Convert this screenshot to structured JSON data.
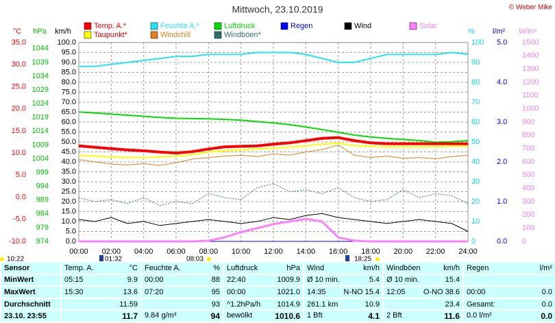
{
  "chart_data": {
    "type": "line",
    "title": "Mittwoch, 23.10.2019",
    "copyright": "© Weber Mike",
    "grid": true,
    "xlim": [
      0,
      24
    ],
    "xticks": [
      {
        "value": 0,
        "label": "00:00"
      },
      {
        "value": 2,
        "label": "02:00"
      },
      {
        "value": 4,
        "label": "04:00"
      },
      {
        "value": 6,
        "label": "06:00"
      },
      {
        "value": 8,
        "label": "08:00"
      },
      {
        "value": 10,
        "label": "10:00"
      },
      {
        "value": 12,
        "label": "12:00"
      },
      {
        "value": 14,
        "label": "14:00"
      },
      {
        "value": 16,
        "label": "16:00"
      },
      {
        "value": 18,
        "label": "18:00"
      },
      {
        "value": 20,
        "label": "20:00"
      },
      {
        "value": 22,
        "label": "22:00"
      },
      {
        "value": 24,
        "label": "24:00"
      }
    ],
    "x": [
      0,
      1,
      2,
      3,
      4,
      5,
      6,
      7,
      8,
      9,
      10,
      11,
      12,
      13,
      14,
      15,
      16,
      17,
      18,
      19,
      20,
      21,
      22,
      23,
      24
    ],
    "axes": {
      "temp": {
        "label": "°C",
        "color": "#ff0000",
        "side": "left",
        "lim": [
          -10,
          35
        ],
        "ticks": [
          {
            "value": 35,
            "label": "35.0"
          },
          {
            "value": 30,
            "label": "30.0"
          },
          {
            "value": 25,
            "label": "25.0"
          },
          {
            "value": 20,
            "label": "20.0"
          },
          {
            "value": 15,
            "label": "15.0"
          },
          {
            "value": 10,
            "label": "10.0"
          },
          {
            "value": 5,
            "label": "5.0"
          },
          {
            "value": 0,
            "label": "0.0"
          },
          {
            "value": -5,
            "label": "-5.0"
          },
          {
            "value": -10,
            "label": "-10.0"
          }
        ]
      },
      "press": {
        "label": "hPa",
        "color": "#00c000",
        "side": "left",
        "lim": [
          974,
          1046.2
        ],
        "ticks": [
          1044,
          1039,
          1034,
          1029,
          1024,
          1019,
          1014,
          1009,
          1004,
          999,
          994,
          989,
          984,
          979,
          974
        ]
      },
      "wind": {
        "label": "km/h",
        "color": "#000000",
        "side": "left",
        "lim": [
          0,
          100
        ],
        "ticks": [
          {
            "value": 100,
            "label": "100.0"
          },
          {
            "value": 95,
            "label": "95.0"
          },
          {
            "value": 90,
            "label": "90.0"
          },
          {
            "value": 85,
            "label": "85.0"
          },
          {
            "value": 80,
            "label": "80.0"
          },
          {
            "value": 75,
            "label": "75.0"
          },
          {
            "value": 70,
            "label": "70.0"
          },
          {
            "value": 65,
            "label": "65.0"
          },
          {
            "value": 60,
            "label": "60.0"
          },
          {
            "value": 55,
            "label": "55.0"
          },
          {
            "value": 50,
            "label": "50.0"
          },
          {
            "value": 45,
            "label": "45.0"
          },
          {
            "value": 40,
            "label": "40.0"
          },
          {
            "value": 35,
            "label": "35.0"
          },
          {
            "value": 30,
            "label": "30.0"
          },
          {
            "value": 25,
            "label": "25.0"
          },
          {
            "value": 20,
            "label": "20.0"
          },
          {
            "value": 15,
            "label": "15.0"
          },
          {
            "value": 10,
            "label": "10.0"
          },
          {
            "value": 5,
            "label": "5.0"
          },
          {
            "value": 0,
            "label": "0.0"
          }
        ]
      },
      "hum": {
        "label": "%",
        "color": "#00d8e8",
        "side": "right",
        "lim": [
          0,
          100
        ],
        "ticks": [
          100,
          90,
          80,
          70,
          60,
          50,
          40,
          30,
          20,
          10,
          0
        ]
      },
      "rain": {
        "label": "l/m²",
        "color": "#0000ff",
        "side": "right",
        "lim": [
          0,
          5
        ],
        "ticks": [
          {
            "value": 5,
            "label": "5.0"
          },
          {
            "value": 4,
            "label": "4.0"
          },
          {
            "value": 3,
            "label": "3.0"
          },
          {
            "value": 2,
            "label": "2.0"
          },
          {
            "value": 1,
            "label": "1.0"
          },
          {
            "value": 0,
            "label": "0.0"
          }
        ]
      },
      "solar": {
        "label": "W/m²",
        "color": "#ee82ee",
        "side": "right",
        "lim": [
          0,
          1500
        ],
        "ticks": [
          1500,
          1400,
          1300,
          1200,
          1100,
          1000,
          900,
          800,
          700,
          600,
          500,
          400,
          300,
          200,
          100,
          0
        ]
      }
    },
    "series": [
      {
        "name": "Temp. A.*",
        "color": "#ff0000",
        "axis": "temp",
        "width": 4,
        "values": [
          11.6,
          11.3,
          11.0,
          10.7,
          10.5,
          10.2,
          10.0,
          10.3,
          10.9,
          11.4,
          11.5,
          11.6,
          12.0,
          12.3,
          12.8,
          13.3,
          13.5,
          12.8,
          12.3,
          12.1,
          12.1,
          12.1,
          12.1,
          12.1,
          12.1
        ]
      },
      {
        "name": "Feuchte A.*",
        "color": "#22e4f2",
        "axis": "hum",
        "width": 2,
        "values": [
          88,
          88,
          89,
          90,
          91,
          92,
          93,
          93,
          94,
          94,
          94,
          95,
          95,
          95,
          94,
          92,
          90,
          90,
          92,
          94,
          94,
          94,
          94,
          95,
          94
        ]
      },
      {
        "name": "Luftdruck",
        "color": "#00dd00",
        "axis": "press",
        "width": 2,
        "values": [
          1021.0,
          1020.6,
          1020.2,
          1019.8,
          1019.4,
          1019.0,
          1018.7,
          1018.6,
          1018.5,
          1018.3,
          1018.0,
          1017.5,
          1017.0,
          1016.4,
          1015.5,
          1014.6,
          1013.6,
          1012.6,
          1011.9,
          1011.4,
          1011.0,
          1010.6,
          1010.0,
          1010.2,
          1010.6
        ]
      },
      {
        "name": "Regen",
        "color": "#0000ff",
        "axis": "rain",
        "width": 1,
        "values": [
          0,
          0,
          0,
          0,
          0,
          0,
          0,
          0,
          0,
          0,
          0,
          0,
          0,
          0,
          0,
          0,
          0,
          0,
          0,
          0,
          0,
          0,
          0,
          0,
          0
        ]
      },
      {
        "name": "Wind",
        "color": "#000000",
        "axis": "wind",
        "width": 1,
        "values": [
          11,
          10,
          12,
          9,
          10,
          8,
          9,
          10,
          11,
          10,
          9,
          10,
          12,
          11,
          13,
          14,
          12,
          11,
          10,
          9,
          10,
          11,
          10,
          9,
          5
        ]
      },
      {
        "name": "Solar",
        "color": "#ff80ff",
        "axis": "solar",
        "width": 3,
        "values": [
          0,
          0,
          0,
          0,
          0,
          0,
          0,
          0,
          5,
          30,
          70,
          100,
          130,
          150,
          170,
          150,
          30,
          5,
          0,
          0,
          0,
          0,
          0,
          0,
          0
        ]
      },
      {
        "name": "Taupunkt*",
        "color": "#ffff00",
        "axis": "temp",
        "width": 2,
        "values": [
          9.5,
          9.3,
          9.1,
          9.0,
          9.0,
          9.1,
          9.3,
          9.6,
          10.2,
          10.5,
          10.7,
          10.9,
          11.1,
          11.3,
          11.6,
          12.0,
          12.2,
          11.7,
          11.5,
          11.4,
          11.4,
          11.4,
          11.4,
          11.5,
          11.5
        ]
      },
      {
        "name": "Windchill",
        "color": "#e08020",
        "axis": "temp",
        "width": 1,
        "values": [
          8.5,
          8.0,
          7.5,
          7.3,
          7.6,
          7.2,
          7.8,
          8.6,
          9.0,
          9.3,
          9.5,
          9.2,
          9.8,
          9.5,
          10.2,
          10.8,
          11.8,
          9.5,
          9.0,
          9.3,
          8.8,
          9.0,
          8.7,
          9.2,
          9.5
        ]
      },
      {
        "name": "Windböen*",
        "color": "#2f6f6f",
        "axis": "wind",
        "width": 1,
        "dashed": true,
        "values": [
          22,
          20,
          21,
          19,
          22,
          18,
          20,
          19,
          24,
          22,
          21,
          27,
          29,
          25,
          26,
          24,
          27,
          22,
          20,
          21,
          26,
          22,
          24,
          23,
          19
        ]
      }
    ],
    "annotations": [
      "10:22",
      "01:32",
      "08:03",
      "18:25"
    ]
  },
  "table": {
    "header": [
      {
        "left": "Sensor"
      },
      {
        "left": "Temp. A.",
        "right": "°C"
      },
      {
        "left": "Feuchte A.",
        "right": "%"
      },
      {
        "left": "Luftdruck",
        "right": "hPa"
      },
      {
        "left": "Wind",
        "right": "km/h"
      },
      {
        "left": "Windböen",
        "right": "km/h"
      },
      {
        "left": "Regen",
        "right": "l/m²"
      }
    ],
    "rows": [
      [
        {
          "left": "MinWert"
        },
        {
          "left": "05:15",
          "right": "9.9"
        },
        {
          "left": "00:00",
          "right": "88"
        },
        {
          "left": "22:40",
          "right": "1009.9"
        },
        {
          "left": "Ø 10 min.",
          "right": "5.4"
        },
        {
          "left": "Ø 10 min.",
          "right": "15.4"
        },
        {}
      ],
      [
        {
          "left": "MaxWert"
        },
        {
          "left": "15:30",
          "right": "13.6"
        },
        {
          "left": "07:20",
          "right": "95"
        },
        {
          "left": "00:00",
          "right": "1021.0"
        },
        {
          "left": "14:35",
          "right": "N-NO 15.4"
        },
        {
          "left": "12:05",
          "right": "O-NO 38.6"
        },
        {
          "left": "00:00",
          "right": "0.0"
        }
      ],
      [
        {
          "left": "Durchschnitt"
        },
        {
          "right": "11.59"
        },
        {
          "right": "93"
        },
        {
          "left": "^1.2hPa/h",
          "right": "1014.9"
        },
        {
          "left": "261.1 km",
          "right": "10.9"
        },
        {
          "right": "23.4"
        },
        {
          "left": "Gesamt:",
          "right": "0.0"
        }
      ],
      [
        {
          "left": "23.10. 23:55"
        },
        {
          "right": "11.7"
        },
        {
          "left": "9.84 g/m³",
          "right": "94"
        },
        {
          "left": "bewölkt",
          "right": "1010.6"
        },
        {
          "left": "1 Bft",
          "right": "4.1"
        },
        {
          "left": "2 Bft",
          "right": "11.6"
        },
        {
          "left": "0.0 l/m²",
          "right": "0.0"
        }
      ]
    ]
  }
}
